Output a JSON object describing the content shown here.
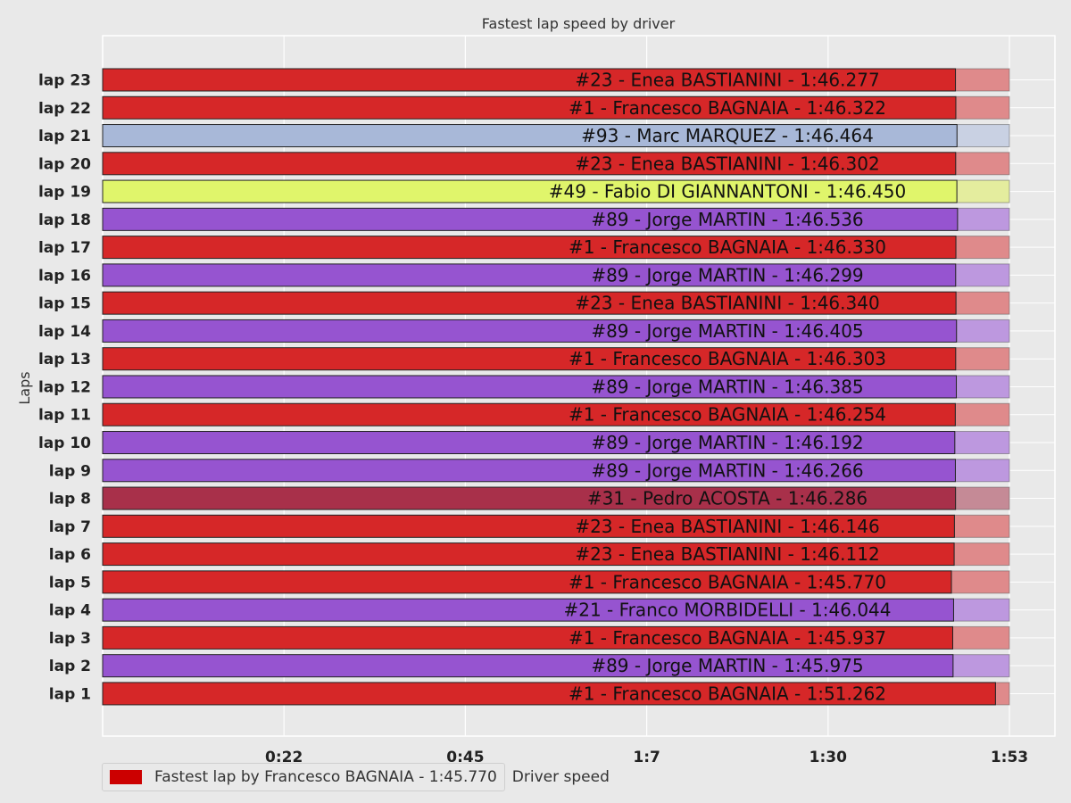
{
  "chart_data": {
    "type": "bar",
    "orientation": "horizontal",
    "title": "Fastest lap speed by driver",
    "xlabel": "",
    "ylabel": "Laps",
    "xlim_seconds": [
      0,
      113
    ],
    "x_tick_labels": [
      "0:22",
      "0:45",
      "1:7",
      "1:30",
      "1:53"
    ],
    "x_tick_values_seconds": [
      22.6,
      45.2,
      67.8,
      90.4,
      113
    ],
    "grid": true,
    "legend_position": "bottom-left",
    "categories": [
      "lap 23",
      "lap 22",
      "lap 21",
      "lap 20",
      "lap 19",
      "lap 18",
      "lap 17",
      "lap 16",
      "lap 15",
      "lap 14",
      "lap 13",
      "lap 12",
      "lap 11",
      "lap 10",
      "lap 9",
      "lap 8",
      "lap 7",
      "lap 6",
      "lap 5",
      "lap 4",
      "lap 3",
      "lap 2",
      "lap 1"
    ],
    "bars": [
      {
        "lap": "lap 23",
        "label": "#23 - Enea BASTIANINI - 1:46.277",
        "value_seconds": 106.277,
        "color": "#d62728",
        "rest_color": "#df8a8b"
      },
      {
        "lap": "lap 22",
        "label": "#1 - Francesco BAGNAIA - 1:46.322",
        "value_seconds": 106.322,
        "color": "#d62728",
        "rest_color": "#df8a8b"
      },
      {
        "lap": "lap 21",
        "label": "#93 - Marc MARQUEZ - 1:46.464",
        "value_seconds": 106.464,
        "color": "#a8b8d8",
        "rest_color": "#c9d1e3"
      },
      {
        "lap": "lap 20",
        "label": "#23 - Enea BASTIANINI - 1:46.302",
        "value_seconds": 106.302,
        "color": "#d62728",
        "rest_color": "#df8a8b"
      },
      {
        "lap": "lap 19",
        "label": "#49 - Fabio DI GIANNANTONI - 1:46.450",
        "value_seconds": 106.45,
        "color": "#e0f56b",
        "rest_color": "#e4ed9e"
      },
      {
        "lap": "lap 18",
        "label": "#89 - Jorge MARTIN - 1:46.536",
        "value_seconds": 106.536,
        "color": "#9654d0",
        "rest_color": "#bd98df"
      },
      {
        "lap": "lap 17",
        "label": "#1 - Francesco BAGNAIA - 1:46.330",
        "value_seconds": 106.33,
        "color": "#d62728",
        "rest_color": "#df8a8b"
      },
      {
        "lap": "lap 16",
        "label": "#89 - Jorge MARTIN - 1:46.299",
        "value_seconds": 106.299,
        "color": "#9654d0",
        "rest_color": "#bd98df"
      },
      {
        "lap": "lap 15",
        "label": "#23 - Enea BASTIANINI - 1:46.340",
        "value_seconds": 106.34,
        "color": "#d62728",
        "rest_color": "#df8a8b"
      },
      {
        "lap": "lap 14",
        "label": "#89 - Jorge MARTIN - 1:46.405",
        "value_seconds": 106.405,
        "color": "#9654d0",
        "rest_color": "#bd98df"
      },
      {
        "lap": "lap 13",
        "label": "#1 - Francesco BAGNAIA - 1:46.303",
        "value_seconds": 106.303,
        "color": "#d62728",
        "rest_color": "#df8a8b"
      },
      {
        "lap": "lap 12",
        "label": "#89 - Jorge MARTIN - 1:46.385",
        "value_seconds": 106.385,
        "color": "#9654d0",
        "rest_color": "#bd98df"
      },
      {
        "lap": "lap 11",
        "label": "#1 - Francesco BAGNAIA - 1:46.254",
        "value_seconds": 106.254,
        "color": "#d62728",
        "rest_color": "#df8a8b"
      },
      {
        "lap": "lap 10",
        "label": "#89 - Jorge MARTIN - 1:46.192",
        "value_seconds": 106.192,
        "color": "#9654d0",
        "rest_color": "#bd98df"
      },
      {
        "lap": "lap 9",
        "label": "#89 - Jorge MARTIN - 1:46.266",
        "value_seconds": 106.266,
        "color": "#9654d0",
        "rest_color": "#bd98df"
      },
      {
        "lap": "lap 8",
        "label": "#31 - Pedro ACOSTA - 1:46.286",
        "value_seconds": 106.286,
        "color": "#a8304a",
        "rest_color": "#c58a96"
      },
      {
        "lap": "lap 7",
        "label": "#23 - Enea BASTIANINI - 1:46.146",
        "value_seconds": 106.146,
        "color": "#d62728",
        "rest_color": "#df8a8b"
      },
      {
        "lap": "lap 6",
        "label": "#23 - Enea BASTIANINI - 1:46.112",
        "value_seconds": 106.112,
        "color": "#d62728",
        "rest_color": "#df8a8b"
      },
      {
        "lap": "lap 5",
        "label": "#1 - Francesco BAGNAIA - 1:45.770",
        "value_seconds": 105.77,
        "color": "#d62728",
        "rest_color": "#df8a8b"
      },
      {
        "lap": "lap 4",
        "label": "#21 - Franco MORBIDELLI - 1:46.044",
        "value_seconds": 106.044,
        "color": "#9654d0",
        "rest_color": "#bd98df"
      },
      {
        "lap": "lap 3",
        "label": "#1 - Francesco BAGNAIA - 1:45.937",
        "value_seconds": 105.937,
        "color": "#d62728",
        "rest_color": "#df8a8b"
      },
      {
        "lap": "lap 2",
        "label": "#89 - Jorge MARTIN - 1:45.975",
        "value_seconds": 105.975,
        "color": "#9654d0",
        "rest_color": "#bd98df"
      },
      {
        "lap": "lap 1",
        "label": "#1 - Francesco BAGNAIA - 1:51.262",
        "value_seconds": 111.262,
        "color": "#d62728",
        "rest_color": "#df8a8b"
      }
    ],
    "legend": {
      "title": "Driver speed",
      "entry": "Fastest lap by Francesco BAGNAIA - 1:45.770",
      "color": "#cc0000"
    }
  }
}
